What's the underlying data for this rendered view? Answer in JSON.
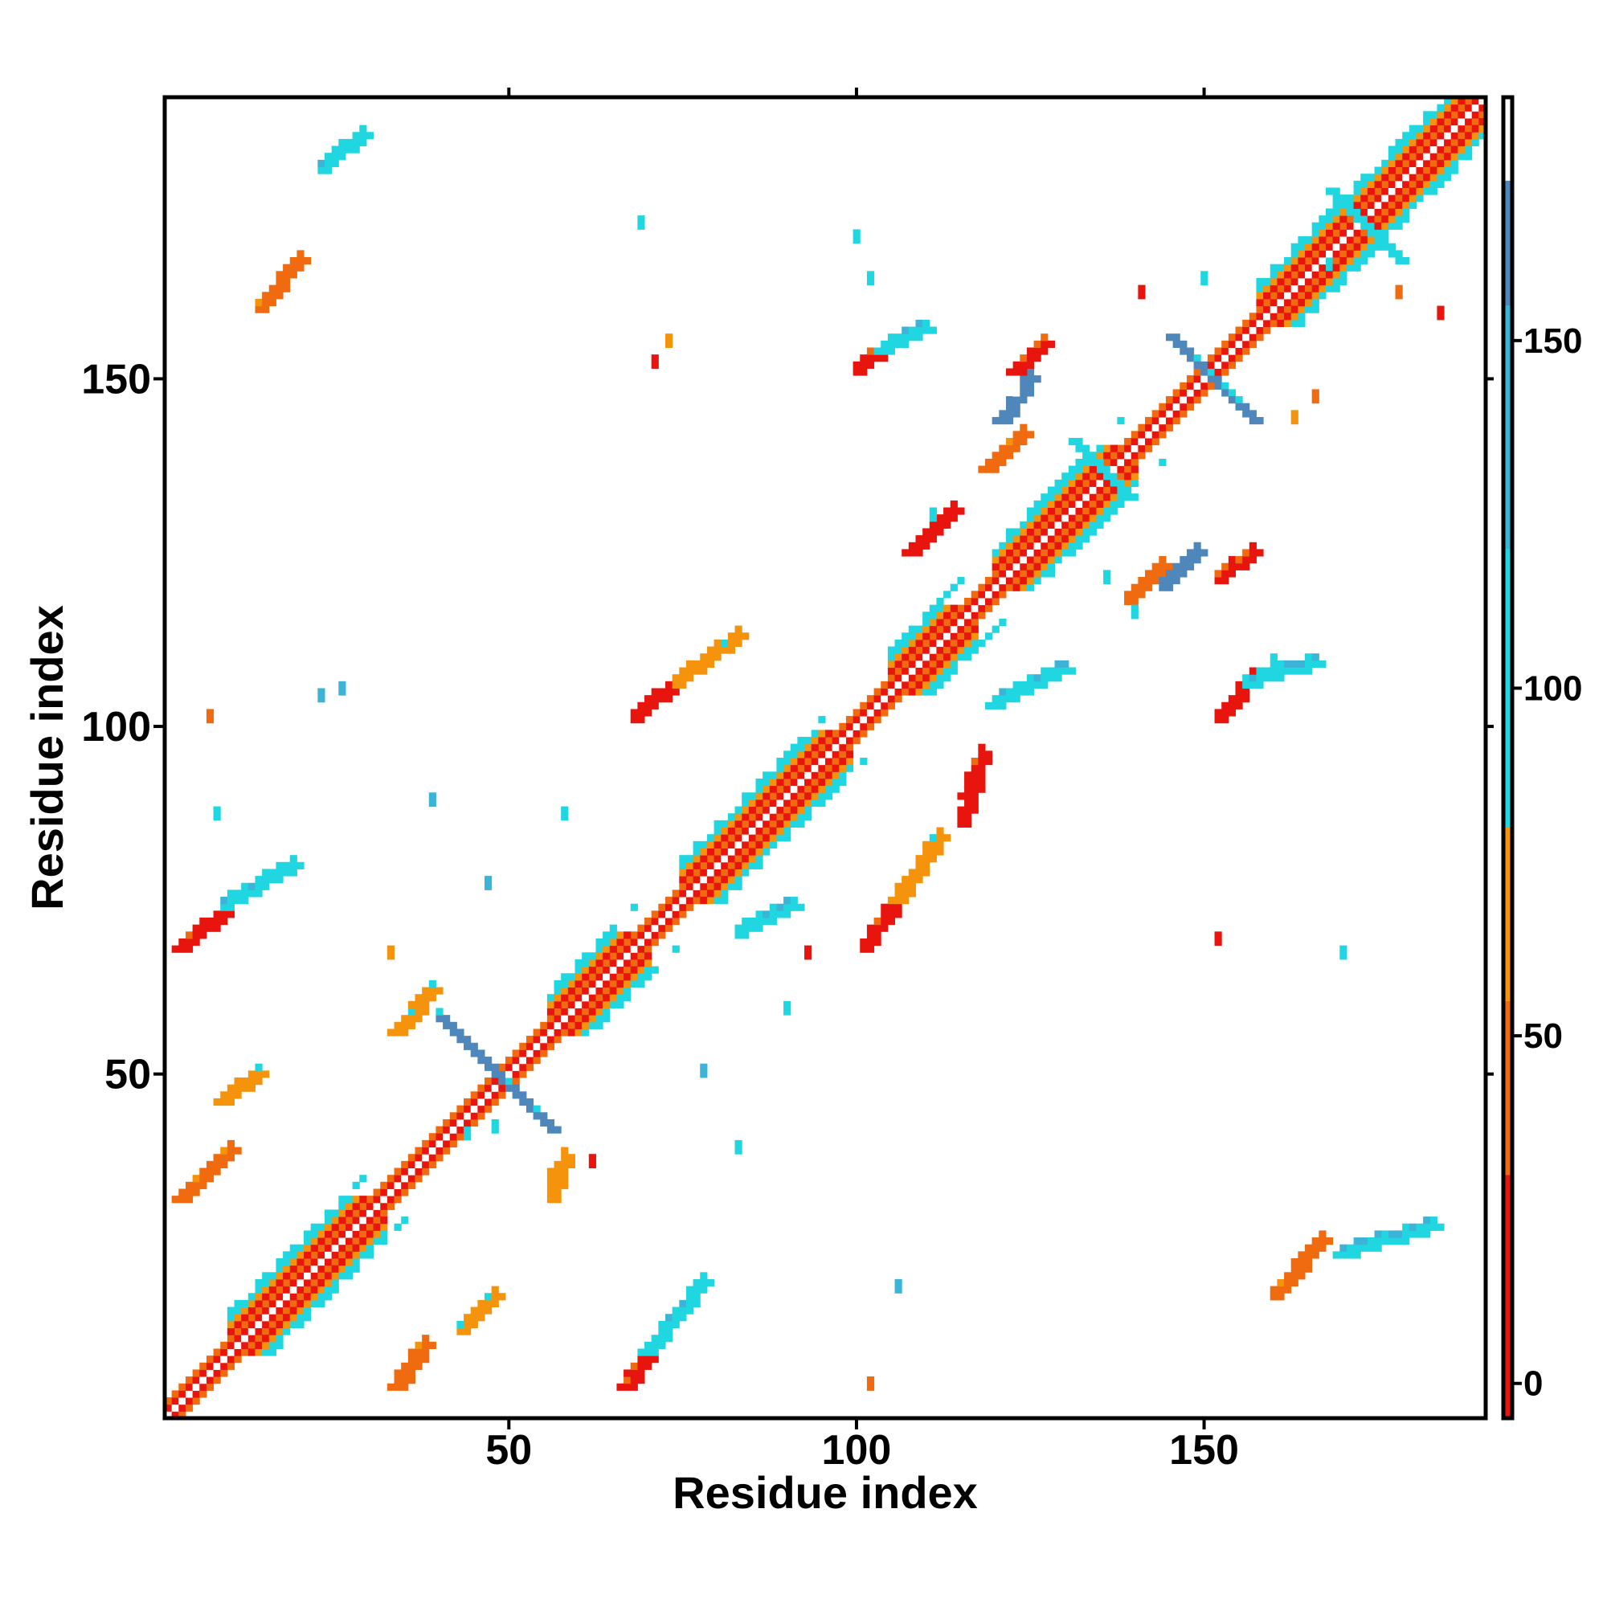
{
  "chart_data": {
    "type": "heatmap",
    "title": "",
    "xlabel": "Residue index",
    "ylabel": "Residue index",
    "xlim": [
      1,
      190
    ],
    "ylim": [
      1,
      190
    ],
    "x_ticks": [
      50,
      100,
      150
    ],
    "y_ticks": [
      50,
      100,
      150
    ],
    "colorbar": {
      "ticks": [
        0,
        50,
        100,
        150
      ],
      "range": [
        -5,
        185
      ],
      "bands": [
        {
          "from": -5,
          "to": 30,
          "color": "#e8150e"
        },
        {
          "from": 30,
          "to": 55,
          "color": "#f06a10"
        },
        {
          "from": 55,
          "to": 80,
          "color": "#f5940c"
        },
        {
          "from": 80,
          "to": 120,
          "color": "#20d6e0"
        },
        {
          "from": 120,
          "to": 155,
          "color": "#3cb4d8"
        },
        {
          "from": 155,
          "to": 173,
          "color": "#4f87bb"
        },
        {
          "from": 173,
          "to": 185,
          "color": "#ffffff"
        }
      ]
    },
    "diagonal": {
      "from": 1,
      "to": 190
    },
    "secondary_structure_blocks": [
      {
        "from": 10,
        "to": 30,
        "type": "helix"
      },
      {
        "from": 56,
        "to": 68,
        "type": "helix"
      },
      {
        "from": 75,
        "to": 97,
        "type": "helix"
      },
      {
        "from": 105,
        "to": 115,
        "type": "helix"
      },
      {
        "from": 120,
        "to": 138,
        "type": "helix"
      },
      {
        "from": 158,
        "to": 188,
        "type": "helix"
      }
    ],
    "strand_crossings": [
      {
        "x": 48,
        "y": 50,
        "extent": 8,
        "level": 160
      },
      {
        "x": 151,
        "y": 150,
        "extent": 6,
        "level": 165
      },
      {
        "x": 135,
        "y": 137,
        "extent": 4,
        "level": 110
      },
      {
        "x": 173,
        "y": 172,
        "extent": 5,
        "level": 110
      }
    ],
    "contact_regions": [
      {
        "x": [
          34,
          38
        ],
        "y": [
          5,
          11
        ],
        "level": 35
      },
      {
        "x": [
          67,
          71
        ],
        "y": [
          5,
          11
        ],
        "level": 10
      },
      {
        "x": [
          43,
          48
        ],
        "y": [
          13,
          18
        ],
        "level": 60
      },
      {
        "x": [
          70,
          78
        ],
        "y": [
          10,
          20
        ],
        "level": 95
      },
      {
        "x": [
          3,
          10
        ],
        "y": [
          32,
          39
        ],
        "level": 40
      },
      {
        "x": [
          56,
          58
        ],
        "y": [
          32,
          38
        ],
        "level": 60
      },
      {
        "x": [
          9,
          14
        ],
        "y": [
          46,
          50
        ],
        "level": 55
      },
      {
        "x": [
          34,
          39
        ],
        "y": [
          56,
          62
        ],
        "level": 60
      },
      {
        "x": [
          3,
          9
        ],
        "y": [
          68,
          73
        ],
        "level": 10
      },
      {
        "x": [
          9,
          19
        ],
        "y": [
          74,
          80
        ],
        "level": 95
      },
      {
        "x": [
          101,
          106
        ],
        "y": [
          68,
          75
        ],
        "level": 10
      },
      {
        "x": [
          106,
          112
        ],
        "y": [
          75,
          84
        ],
        "level": 60
      },
      {
        "x": [
          68,
          74
        ],
        "y": [
          101,
          106
        ],
        "level": 10
      },
      {
        "x": [
          74,
          83
        ],
        "y": [
          106,
          113
        ],
        "level": 60
      },
      {
        "x": [
          152,
          157
        ],
        "y": [
          101,
          107
        ],
        "level": 10
      },
      {
        "x": [
          156,
          166
        ],
        "y": [
          106,
          109
        ],
        "level": 110
      },
      {
        "x": [
          139,
          144
        ],
        "y": [
          118,
          123
        ],
        "level": 40
      },
      {
        "x": [
          144,
          149
        ],
        "y": [
          120,
          125
        ],
        "level": 165
      },
      {
        "x": [
          152,
          157
        ],
        "y": [
          121,
          125
        ],
        "level": 10
      },
      {
        "x": [
          119,
          124
        ],
        "y": [
          137,
          142
        ],
        "level": 40
      },
      {
        "x": [
          121,
          125
        ],
        "y": [
          144,
          150
        ],
        "level": 165
      },
      {
        "x": [
          123,
          127
        ],
        "y": [
          151,
          155
        ],
        "level": 10
      },
      {
        "x": [
          100,
          105
        ],
        "y": [
          151,
          155
        ],
        "level": 10
      },
      {
        "x": [
          104,
          110
        ],
        "y": [
          154,
          157
        ],
        "level": 95
      },
      {
        "x": [
          14,
          20
        ],
        "y": [
          160,
          167
        ],
        "level": 35
      },
      {
        "x": [
          23,
          29
        ],
        "y": [
          180,
          185
        ],
        "level": 110
      },
      {
        "x": [
          160,
          167
        ],
        "y": [
          18,
          26
        ],
        "level": 40
      },
      {
        "x": [
          170,
          183
        ],
        "y": [
          24,
          28
        ],
        "level": 110
      },
      {
        "x": [
          115,
          118
        ],
        "y": [
          86,
          96
        ],
        "level": 20
      },
      {
        "x": [
          83,
          91
        ],
        "y": [
          70,
          74
        ],
        "level": 95
      },
      {
        "x": [
          108,
          114
        ],
        "y": [
          125,
          131
        ],
        "level": 20
      },
      {
        "x": [
          120,
          130
        ],
        "y": [
          103,
          108
        ],
        "level": 110
      }
    ],
    "scattered_points": [
      {
        "x": 71,
        "y": 153,
        "level": 10
      },
      {
        "x": 73,
        "y": 156,
        "level": 60
      },
      {
        "x": 69,
        "y": 173,
        "level": 110
      },
      {
        "x": 100,
        "y": 171,
        "level": 110
      },
      {
        "x": 102,
        "y": 165,
        "level": 110
      },
      {
        "x": 44,
        "y": 42,
        "level": 110
      },
      {
        "x": 48,
        "y": 43,
        "level": 110
      },
      {
        "x": 62,
        "y": 38,
        "level": 20
      },
      {
        "x": 39,
        "y": 90,
        "level": 150
      },
      {
        "x": 47,
        "y": 78,
        "level": 150
      },
      {
        "x": 58,
        "y": 88,
        "level": 110
      },
      {
        "x": 8,
        "y": 88,
        "level": 110
      },
      {
        "x": 23,
        "y": 105,
        "level": 150
      },
      {
        "x": 26,
        "y": 106,
        "level": 150
      },
      {
        "x": 7,
        "y": 102,
        "level": 40
      },
      {
        "x": 33,
        "y": 68,
        "level": 60
      },
      {
        "x": 93,
        "y": 68,
        "level": 20
      },
      {
        "x": 90,
        "y": 60,
        "level": 110
      },
      {
        "x": 78,
        "y": 51,
        "level": 150
      },
      {
        "x": 83,
        "y": 40,
        "level": 110
      },
      {
        "x": 102,
        "y": 6,
        "level": 40
      },
      {
        "x": 106,
        "y": 20,
        "level": 150
      },
      {
        "x": 152,
        "y": 70,
        "level": 20
      },
      {
        "x": 170,
        "y": 68,
        "level": 110
      },
      {
        "x": 140,
        "y": 117,
        "level": 110
      },
      {
        "x": 163,
        "y": 145,
        "level": 60
      },
      {
        "x": 166,
        "y": 148,
        "level": 40
      },
      {
        "x": 136,
        "y": 122,
        "level": 110
      },
      {
        "x": 160,
        "y": 110,
        "level": 110
      },
      {
        "x": 111,
        "y": 131,
        "level": 110
      },
      {
        "x": 141,
        "y": 163,
        "level": 20
      },
      {
        "x": 150,
        "y": 165,
        "level": 110
      },
      {
        "x": 168,
        "y": 167,
        "level": 110
      },
      {
        "x": 178,
        "y": 163,
        "level": 40
      },
      {
        "x": 184,
        "y": 160,
        "level": 20
      }
    ]
  }
}
